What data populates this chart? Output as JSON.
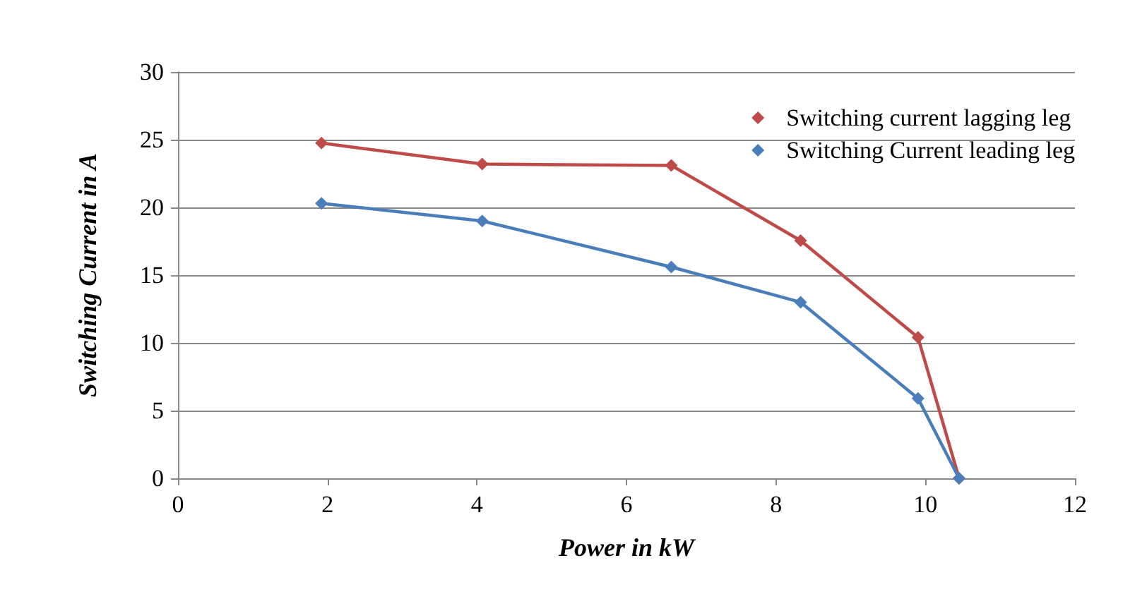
{
  "chart_data": {
    "type": "line",
    "xlabel": "Power in kW",
    "ylabel": "Switching Current in A",
    "x": [
      1.92,
      4.07,
      6.6,
      8.33,
      9.9,
      10.45
    ],
    "series": [
      {
        "name": "Switching current lagging leg",
        "color": "#be4b48",
        "values": [
          24.75,
          23.2,
          23.1,
          17.55,
          10.4,
          0
        ]
      },
      {
        "name": "Switching Current leading leg",
        "color": "#4a7ebb",
        "values": [
          20.3,
          19.0,
          15.6,
          13.0,
          5.9,
          0
        ]
      }
    ],
    "xlim": [
      0,
      12
    ],
    "xticks": [
      0,
      2,
      4,
      6,
      8,
      10,
      12
    ],
    "ylim": [
      0,
      30
    ],
    "yticks": [
      0,
      5,
      10,
      15,
      20,
      25,
      30
    ],
    "grid": "y",
    "legend": "top right",
    "marker": "diamond",
    "line_style": "solid"
  }
}
